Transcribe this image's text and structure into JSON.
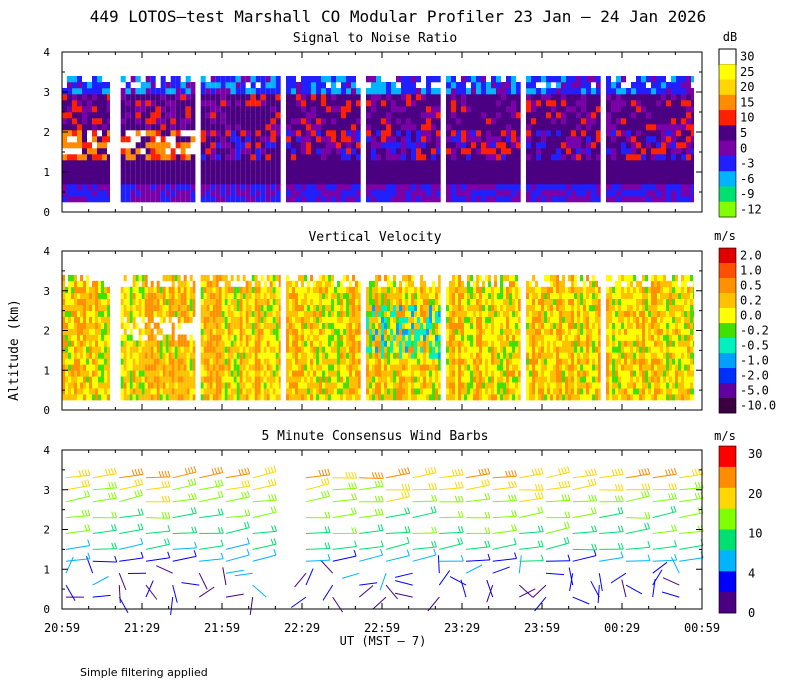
{
  "figure": {
    "title": "449 LOTOS—test Marshall CO Modular Profiler 23 Jan — 24 Jan 2026",
    "ylabel": "Altitude (km)",
    "xlabel": "UT  (MST — 7)",
    "x_ticks": [
      "20:59",
      "21:29",
      "21:59",
      "22:29",
      "22:59",
      "23:29",
      "23:59",
      "00:29",
      "00:59"
    ],
    "footnote": "Simple filtering applied"
  },
  "chart_data": [
    {
      "type": "heatmap",
      "title": "Signal to Noise Ratio",
      "units": "dB",
      "ylim": [
        0,
        4
      ],
      "y_ticks": [
        "0",
        "1",
        "2",
        "3",
        "4"
      ],
      "colorbar_labels": [
        "30",
        "25",
        "20",
        "15",
        "10",
        "5",
        "0",
        "-3",
        "-6",
        "-9",
        "-12"
      ],
      "colorbar_colors": [
        "#ffffff",
        "#ffff00",
        "#ffd700",
        "#ff8c00",
        "#ff2000",
        "#4b0082",
        "#7a00a8",
        "#2020ff",
        "#00b4ff",
        "#00e070",
        "#80ff00"
      ],
      "data_range_km": [
        0.25,
        3.3
      ],
      "segments": [
        {
          "start": "20:59",
          "end": "21:17"
        },
        {
          "start": "21:21",
          "end": "21:49"
        },
        {
          "start": "21:51",
          "end": "22:21"
        },
        {
          "start": "22:23",
          "end": "22:51"
        },
        {
          "start": "22:53",
          "end": "23:21"
        },
        {
          "start": "23:23",
          "end": "23:51"
        },
        {
          "start": "23:53",
          "end": "00:21"
        },
        {
          "start": "00:23",
          "end": "00:56"
        }
      ]
    },
    {
      "type": "heatmap",
      "title": "Vertical Velocity",
      "units": "m/s",
      "ylim": [
        0,
        4
      ],
      "y_ticks": [
        "0",
        "1",
        "2",
        "3",
        "4"
      ],
      "colorbar_labels": [
        "2.0",
        "1.0",
        "0.5",
        "0.2",
        "0.0",
        "-0.2",
        "-0.5",
        "-1.0",
        "-2.0",
        "-5.0",
        "-10.0"
      ],
      "colorbar_colors": [
        "#e00000",
        "#ff5000",
        "#ff9000",
        "#ffc000",
        "#ffff00",
        "#40e000",
        "#00f0c0",
        "#00a0ff",
        "#0030ff",
        "#6000a0",
        "#3a0040"
      ],
      "data_range_km": [
        0.25,
        3.3
      ]
    },
    {
      "type": "scatter",
      "title": "5 Minute Consensus Wind Barbs",
      "units": "m/s",
      "ylim": [
        0,
        4
      ],
      "y_ticks": [
        "0",
        "1",
        "2",
        "3",
        "4"
      ],
      "colorbar_labels": [
        "30",
        "20",
        "10",
        "4",
        "0"
      ],
      "colorbar_colors": [
        "#ff0000",
        "#ff8c00",
        "#ffd700",
        "#80ff00",
        "#00e070",
        "#00b4ff",
        "#0000ff",
        "#4b0082"
      ],
      "speed_profile": [
        {
          "altitude_km": 0.3,
          "speed_ms": 2
        },
        {
          "altitude_km": 0.6,
          "speed_ms": 3
        },
        {
          "altitude_km": 0.9,
          "speed_ms": 4
        },
        {
          "altitude_km": 1.2,
          "speed_ms": 6
        },
        {
          "altitude_km": 1.5,
          "speed_ms": 9
        },
        {
          "altitude_km": 1.9,
          "speed_ms": 11
        },
        {
          "altitude_km": 2.3,
          "speed_ms": 13
        },
        {
          "altitude_km": 2.7,
          "speed_ms": 16
        },
        {
          "altitude_km": 3.0,
          "speed_ms": 19
        },
        {
          "altitude_km": 3.3,
          "speed_ms": 24
        }
      ]
    }
  ]
}
